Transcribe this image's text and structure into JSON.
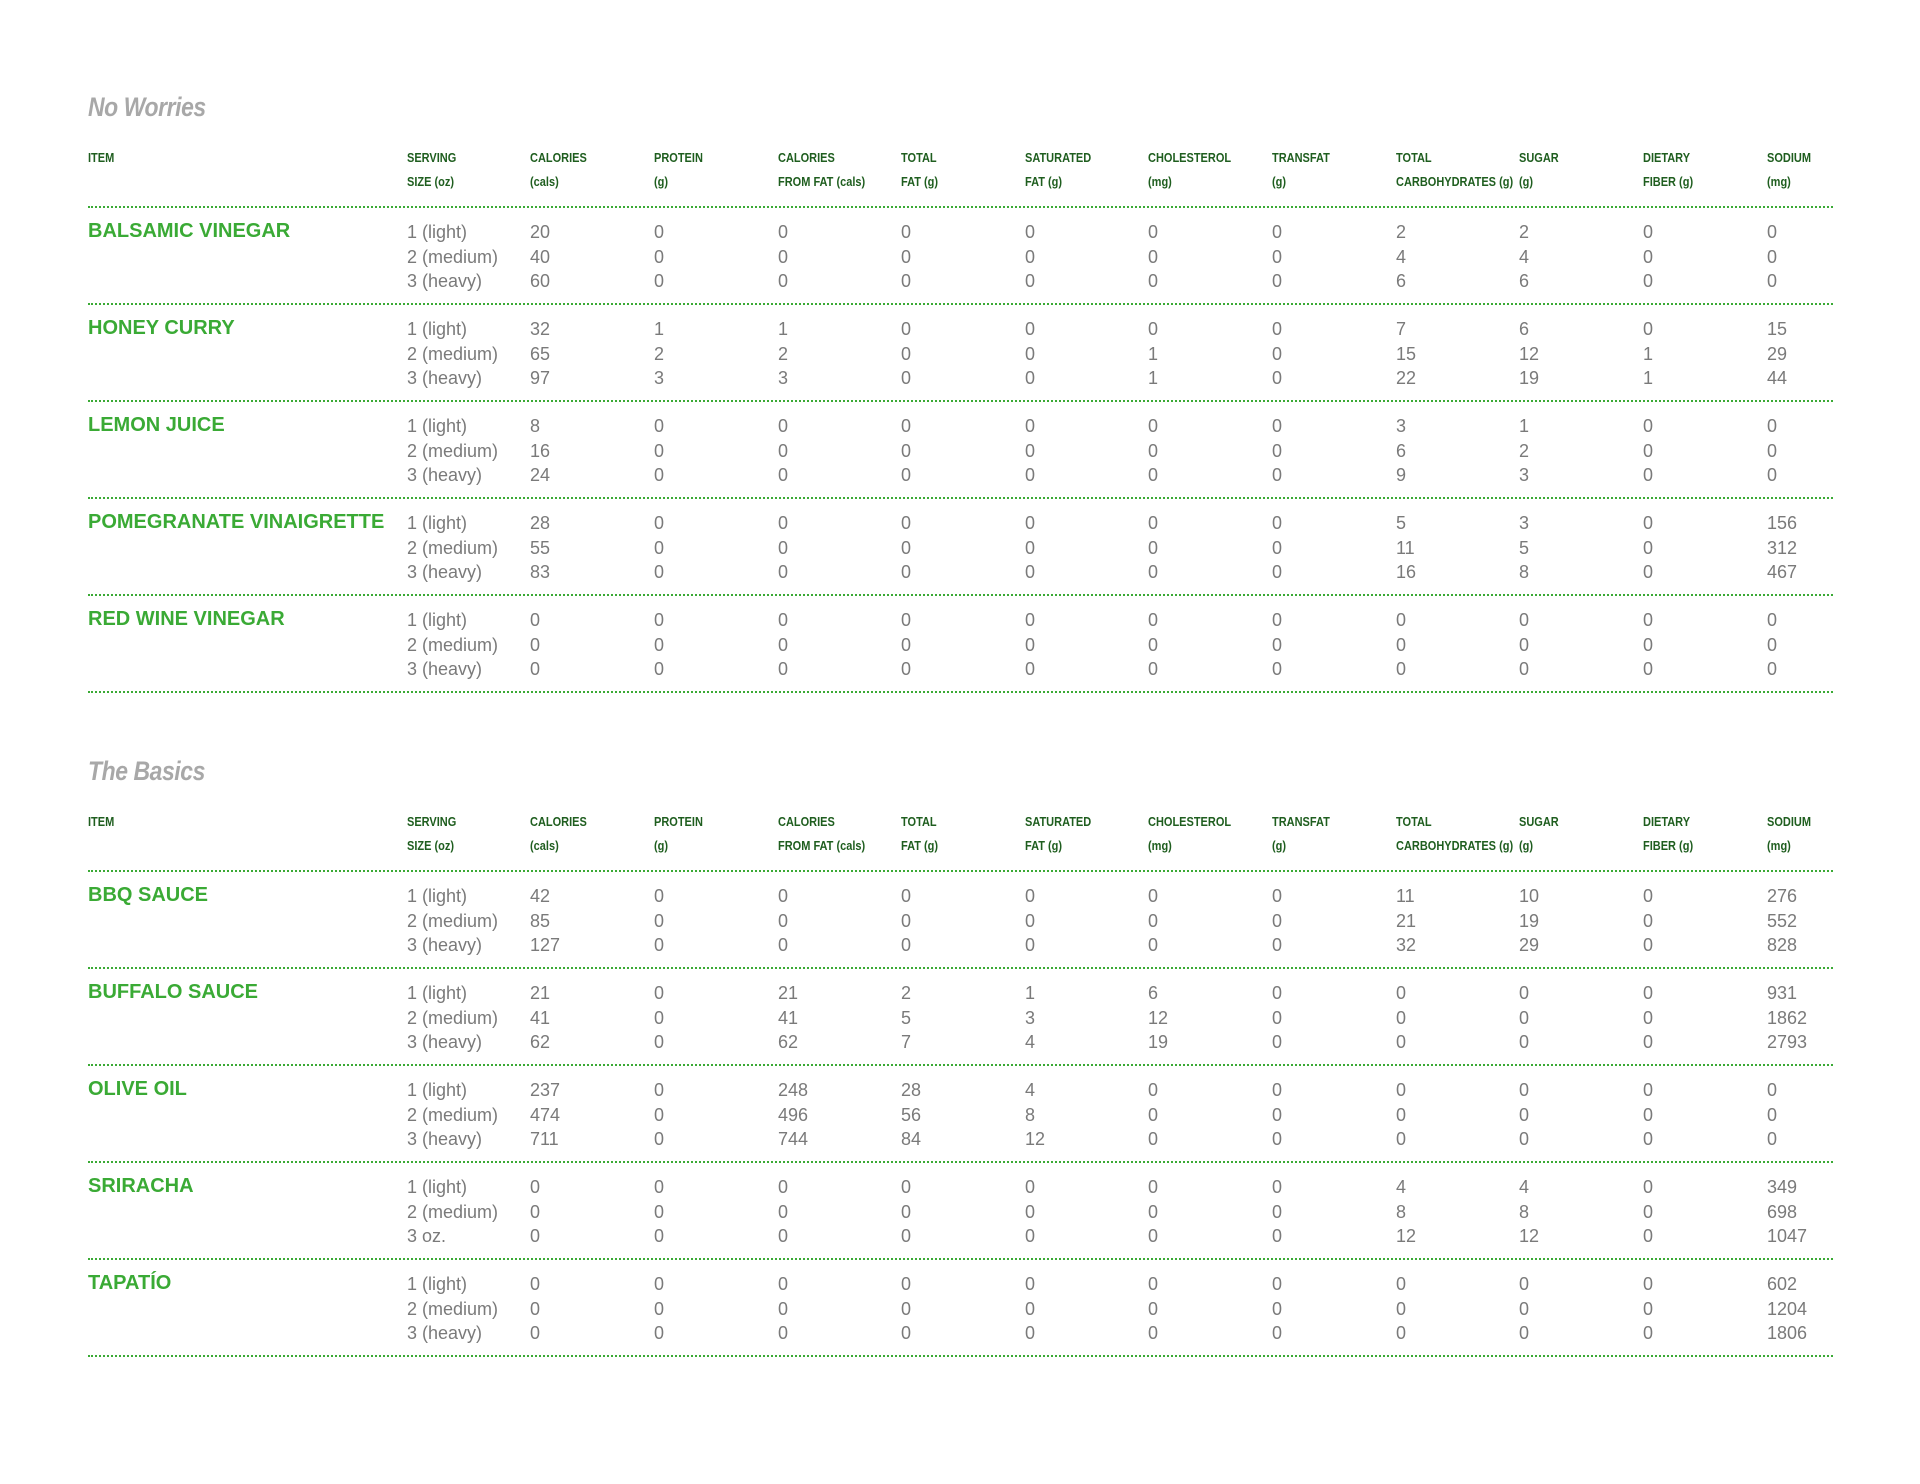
{
  "columns": [
    [
      "ITEM",
      ""
    ],
    [
      "SERVING",
      "SIZE (oz)"
    ],
    [
      "CALORIES",
      "(cals)"
    ],
    [
      "PROTEIN",
      "(g)"
    ],
    [
      "CALORIES",
      "FROM FAT (cals)"
    ],
    [
      "TOTAL",
      "FAT (g)"
    ],
    [
      "SATURATED",
      "FAT (g)"
    ],
    [
      "CHOLESTEROL",
      "(mg)"
    ],
    [
      "TRANSFAT",
      "(g)"
    ],
    [
      "TOTAL",
      "CARBOHYDRATES (g)"
    ],
    [
      "SUGAR",
      "(g)"
    ],
    [
      "DIETARY",
      "FIBER (g)"
    ],
    [
      "SODIUM",
      "(mg)"
    ]
  ],
  "colors": {
    "item": "#3aaa35",
    "header": "#1f5e1f",
    "value": "#7a7a7a",
    "title": "#a8a8a8"
  },
  "sections": [
    {
      "title": "No Worries",
      "items": [
        {
          "name": "BALSAMIC VINEGAR",
          "rows": [
            [
              "1 (light)",
              "20",
              "0",
              "0",
              "0",
              "0",
              "0",
              "0",
              "2",
              "2",
              "0",
              "0"
            ],
            [
              "2 (medium)",
              "40",
              "0",
              "0",
              "0",
              "0",
              "0",
              "0",
              "4",
              "4",
              "0",
              "0"
            ],
            [
              "3 (heavy)",
              "60",
              "0",
              "0",
              "0",
              "0",
              "0",
              "0",
              "6",
              "6",
              "0",
              "0"
            ]
          ]
        },
        {
          "name": "HONEY CURRY",
          "rows": [
            [
              "1 (light)",
              "32",
              "1",
              "1",
              "0",
              "0",
              "0",
              "0",
              "7",
              "6",
              "0",
              "15"
            ],
            [
              "2 (medium)",
              "65",
              "2",
              "2",
              "0",
              "0",
              "1",
              "0",
              "15",
              "12",
              "1",
              "29"
            ],
            [
              "3 (heavy)",
              "97",
              "3",
              "3",
              "0",
              "0",
              "1",
              "0",
              "22",
              "19",
              "1",
              "44"
            ]
          ]
        },
        {
          "name": "LEMON JUICE",
          "rows": [
            [
              "1 (light)",
              "8",
              "0",
              "0",
              "0",
              "0",
              "0",
              "0",
              "3",
              "1",
              "0",
              "0"
            ],
            [
              "2 (medium)",
              "16",
              "0",
              "0",
              "0",
              "0",
              "0",
              "0",
              "6",
              "2",
              "0",
              "0"
            ],
            [
              "3 (heavy)",
              "24",
              "0",
              "0",
              "0",
              "0",
              "0",
              "0",
              "9",
              "3",
              "0",
              "0"
            ]
          ]
        },
        {
          "name": "POMEGRANATE VINAIGRETTE",
          "rows": [
            [
              "1 (light)",
              "28",
              "0",
              "0",
              "0",
              "0",
              "0",
              "0",
              "5",
              "3",
              "0",
              "156"
            ],
            [
              "2 (medium)",
              "55",
              "0",
              "0",
              "0",
              "0",
              "0",
              "0",
              "11",
              "5",
              "0",
              "312"
            ],
            [
              "3 (heavy)",
              "83",
              "0",
              "0",
              "0",
              "0",
              "0",
              "0",
              "16",
              "8",
              "0",
              "467"
            ]
          ]
        },
        {
          "name": "RED WINE VINEGAR",
          "rows": [
            [
              "1 (light)",
              "0",
              "0",
              "0",
              "0",
              "0",
              "0",
              "0",
              "0",
              "0",
              "0",
              "0"
            ],
            [
              "2 (medium)",
              "0",
              "0",
              "0",
              "0",
              "0",
              "0",
              "0",
              "0",
              "0",
              "0",
              "0"
            ],
            [
              "3 (heavy)",
              "0",
              "0",
              "0",
              "0",
              "0",
              "0",
              "0",
              "0",
              "0",
              "0",
              "0"
            ]
          ]
        }
      ]
    },
    {
      "title": "The Basics",
      "items": [
        {
          "name": "BBQ SAUCE",
          "rows": [
            [
              "1 (light)",
              "42",
              "0",
              "0",
              "0",
              "0",
              "0",
              "0",
              "11",
              "10",
              "0",
              "276"
            ],
            [
              "2 (medium)",
              "85",
              "0",
              "0",
              "0",
              "0",
              "0",
              "0",
              "21",
              "19",
              "0",
              "552"
            ],
            [
              "3 (heavy)",
              "127",
              "0",
              "0",
              "0",
              "0",
              "0",
              "0",
              "32",
              "29",
              "0",
              "828"
            ]
          ]
        },
        {
          "name": "BUFFALO SAUCE",
          "rows": [
            [
              "1 (light)",
              "21",
              "0",
              "21",
              "2",
              "1",
              "6",
              "0",
              "0",
              "0",
              "0",
              "931"
            ],
            [
              "2 (medium)",
              "41",
              "0",
              "41",
              "5",
              "3",
              "12",
              "0",
              "0",
              "0",
              "0",
              "1862"
            ],
            [
              "3 (heavy)",
              "62",
              "0",
              "62",
              "7",
              "4",
              "19",
              "0",
              "0",
              "0",
              "0",
              "2793"
            ]
          ]
        },
        {
          "name": "OLIVE OIL",
          "rows": [
            [
              "1 (light)",
              "237",
              "0",
              "248",
              "28",
              "4",
              "0",
              "0",
              "0",
              "0",
              "0",
              "0"
            ],
            [
              "2 (medium)",
              "474",
              "0",
              "496",
              "56",
              "8",
              "0",
              "0",
              "0",
              "0",
              "0",
              "0"
            ],
            [
              "3 (heavy)",
              "711",
              "0",
              "744",
              "84",
              "12",
              "0",
              "0",
              "0",
              "0",
              "0",
              "0"
            ]
          ]
        },
        {
          "name": "SRIRACHA",
          "rows": [
            [
              "1 (light)",
              "0",
              "0",
              "0",
              "0",
              "0",
              "0",
              "0",
              "4",
              "4",
              "0",
              "349"
            ],
            [
              "2 (medium)",
              "0",
              "0",
              "0",
              "0",
              "0",
              "0",
              "0",
              "8",
              "8",
              "0",
              "698"
            ],
            [
              "3 oz.",
              "0",
              "0",
              "0",
              "0",
              "0",
              "0",
              "0",
              "12",
              "12",
              "0",
              "1047"
            ]
          ]
        },
        {
          "name": "TAPATÍO",
          "rows": [
            [
              "1 (light)",
              "0",
              "0",
              "0",
              "0",
              "0",
              "0",
              "0",
              "0",
              "0",
              "0",
              "602"
            ],
            [
              "2 (medium)",
              "0",
              "0",
              "0",
              "0",
              "0",
              "0",
              "0",
              "0",
              "0",
              "0",
              "1204"
            ],
            [
              "3 (heavy)",
              "0",
              "0",
              "0",
              "0",
              "0",
              "0",
              "0",
              "0",
              "0",
              "0",
              "1806"
            ]
          ]
        }
      ]
    }
  ]
}
